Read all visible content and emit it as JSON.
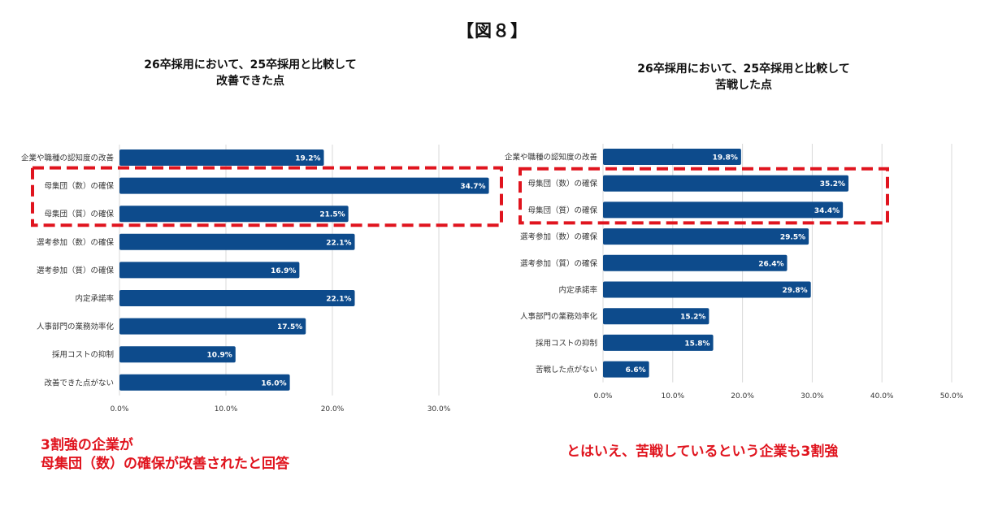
{
  "figure_title": "【図８】",
  "colors": {
    "bar": "#0d4b8c",
    "highlight": "#e0141e",
    "grid": "#d8d8d8"
  },
  "chart_data": [
    {
      "type": "bar",
      "orientation": "horizontal",
      "title": [
        "26卒採用において、25卒採用と比較して",
        "改善できた点"
      ],
      "categories": [
        "企業や職種の認知度の改善",
        "母集団（数）の確保",
        "母集団（質）の確保",
        "選考参加（数）の確保",
        "選考参加（質）の確保",
        "内定承諾率",
        "人事部門の業務効率化",
        "採用コストの抑制",
        "改善できた点がない"
      ],
      "values": [
        19.2,
        34.7,
        21.5,
        22.1,
        16.9,
        22.1,
        17.5,
        10.9,
        16.0
      ],
      "value_labels": [
        "19.2%",
        "34.7%",
        "21.5%",
        "22.1%",
        "16.9%",
        "22.1%",
        "17.5%",
        "10.9%",
        "16.0%"
      ],
      "xlim": [
        0,
        35
      ],
      "ticks": [
        0,
        10,
        20,
        30
      ],
      "tick_labels": [
        "0.0%",
        "10.0%",
        "20.0%",
        "30.0%"
      ],
      "grid": true,
      "highlight_categories": [
        "母集団（数）の確保",
        "母集団（質）の確保"
      ]
    },
    {
      "type": "bar",
      "orientation": "horizontal",
      "title": [
        "26卒採用において、25卒採用と比較して",
        "苦戦した点"
      ],
      "categories": [
        "企業や職種の認知度の改善",
        "母集団（数）の確保",
        "母集団（質）の確保",
        "選考参加（数）の確保",
        "選考参加（質）の確保",
        "内定承諾率",
        "人事部門の業務効率化",
        "採用コストの抑制",
        "苦戦した点がない"
      ],
      "values": [
        19.8,
        35.2,
        34.4,
        29.5,
        26.4,
        29.8,
        15.2,
        15.8,
        6.6
      ],
      "value_labels": [
        "19.8%",
        "35.2%",
        "34.4%",
        "29.5%",
        "26.4%",
        "29.8%",
        "15.2%",
        "15.8%",
        "6.6%"
      ],
      "xlim": [
        0,
        50
      ],
      "ticks": [
        0,
        10,
        20,
        30,
        40,
        50
      ],
      "tick_labels": [
        "0.0%",
        "10.0%",
        "20.0%",
        "30.0%",
        "40.0%",
        "50.0%"
      ],
      "grid": true,
      "highlight_categories": [
        "母集団（数）の確保",
        "母集団（質）の確保"
      ]
    }
  ],
  "callouts": {
    "left": [
      "3割強の企業が",
      "母集団（数）の確保が改善されたと回答"
    ],
    "right": [
      "とはいえ、苦戦しているという企業も3割強"
    ]
  }
}
